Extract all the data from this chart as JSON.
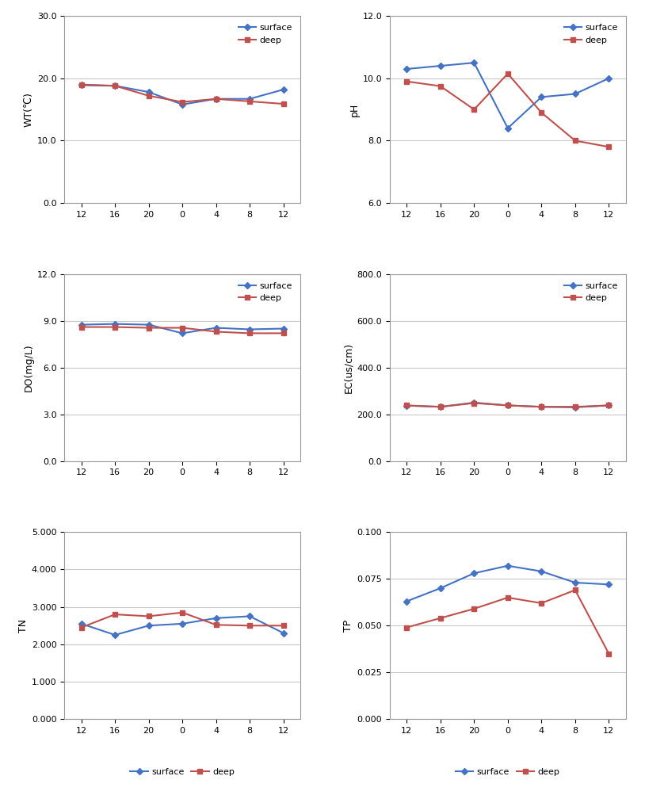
{
  "x_labels": [
    12,
    16,
    20,
    0,
    4,
    8,
    12
  ],
  "x_positions": [
    0,
    1,
    2,
    3,
    4,
    5,
    6
  ],
  "WT": {
    "surface": [
      18.9,
      18.8,
      17.8,
      15.8,
      16.7,
      16.7,
      18.2
    ],
    "deep": [
      19.0,
      18.8,
      17.2,
      16.2,
      16.7,
      16.3,
      15.9
    ],
    "ylabel": "WT(℃)",
    "ylim": [
      0.0,
      30.0
    ],
    "yticks": [
      0.0,
      10.0,
      20.0,
      30.0
    ]
  },
  "pH": {
    "surface": [
      10.3,
      10.4,
      10.5,
      8.4,
      9.4,
      9.5,
      10.0
    ],
    "deep": [
      9.9,
      9.75,
      9.0,
      10.15,
      8.9,
      8.0,
      7.8
    ],
    "ylabel": "pH",
    "ylim": [
      6.0,
      12.0
    ],
    "yticks": [
      6.0,
      8.0,
      10.0,
      12.0
    ]
  },
  "DO": {
    "surface": [
      8.75,
      8.8,
      8.75,
      8.2,
      8.55,
      8.45,
      8.5
    ],
    "deep": [
      8.6,
      8.6,
      8.55,
      8.55,
      8.3,
      8.2,
      8.2
    ],
    "ylabel": "DO(mg/L)",
    "ylim": [
      0.0,
      12.0
    ],
    "yticks": [
      0.0,
      3.0,
      6.0,
      9.0,
      12.0
    ]
  },
  "EC": {
    "surface": [
      237,
      232,
      250,
      238,
      232,
      230,
      238
    ],
    "deep": [
      238,
      232,
      248,
      238,
      232,
      232,
      238
    ],
    "ylabel": "EC(us/cm)",
    "ylim": [
      0.0,
      800.0
    ],
    "yticks": [
      0.0,
      200.0,
      400.0,
      600.0,
      800.0
    ]
  },
  "TN": {
    "surface": [
      2.55,
      2.25,
      2.5,
      2.55,
      2.7,
      2.75,
      2.3
    ],
    "deep": [
      2.45,
      2.8,
      2.75,
      2.85,
      2.52,
      2.5,
      2.5
    ],
    "ylabel": "TN",
    "ylim": [
      0.0,
      5.0
    ],
    "yticks": [
      0.0,
      1.0,
      2.0,
      3.0,
      4.0,
      5.0
    ]
  },
  "TP": {
    "surface": [
      0.063,
      0.07,
      0.078,
      0.082,
      0.079,
      0.073,
      0.072
    ],
    "deep": [
      0.049,
      0.054,
      0.059,
      0.065,
      0.062,
      0.069,
      0.035
    ],
    "ylabel": "TP",
    "ylim": [
      0.0,
      0.1
    ],
    "yticks": [
      0.0,
      0.025,
      0.05,
      0.075,
      0.1
    ]
  },
  "surface_color": "#4472c4",
  "deep_color": "#c0504d",
  "surface_marker": "D",
  "deep_marker": "s",
  "linewidth": 1.5,
  "markersize": 4,
  "legend_fontsize": 8,
  "tick_fontsize": 8,
  "ylabel_fontsize": 9,
  "grid_color": "#c8c8c8",
  "bg_color": "#ffffff"
}
